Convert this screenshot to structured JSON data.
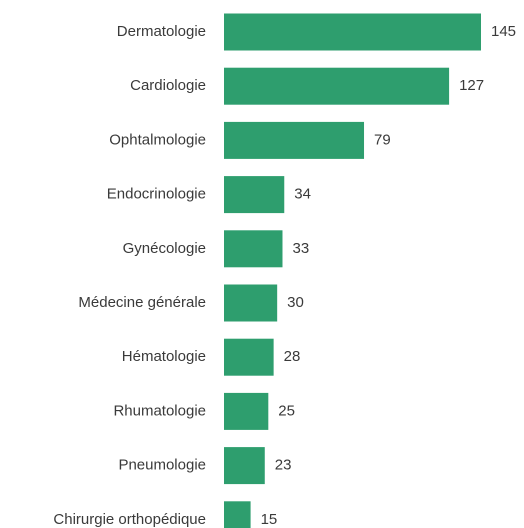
{
  "chart_data": {
    "type": "bar",
    "orientation": "horizontal",
    "title": "",
    "xlabel": "",
    "ylabel": "",
    "categories": [
      "Dermatologie",
      "Cardiologie",
      "Ophtalmologie",
      "Endocrinologie",
      "Gynécologie",
      "Médecine générale",
      "Hématologie",
      "Rhumatologie",
      "Pneumologie",
      "Chirurgie orthopédique"
    ],
    "values": [
      145,
      127,
      79,
      34,
      33,
      30,
      28,
      25,
      23,
      15
    ],
    "xlim": [
      0,
      145
    ],
    "grid": false,
    "legend": "none",
    "bar_color": "#2e9e6e",
    "label_color": "#3a3a3a"
  }
}
